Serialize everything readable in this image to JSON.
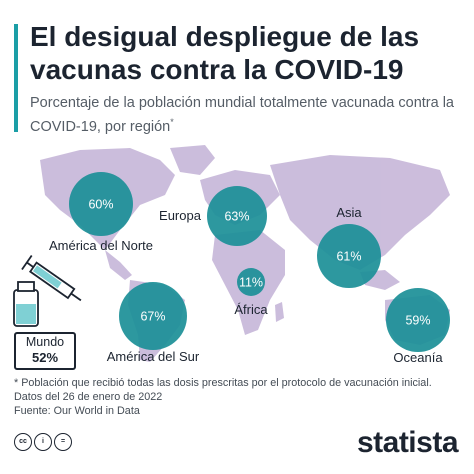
{
  "header": {
    "title": "El desigual despliegue de las vacunas contra la COVID-19",
    "subtitle": "Porcentaje de la población mundial totalmente vacunada contra la COVID-19, por región",
    "subtitle_mark": "*"
  },
  "chart_data": {
    "type": "map-bubble",
    "title": "El desigual despliegue de las vacunas contra la COVID-19",
    "subtitle": "Porcentaje de la población mundial totalmente vacunada contra la COVID-19, por región*",
    "unit": "%",
    "regions": [
      {
        "name": "América del Norte",
        "value": 60,
        "label": "60%"
      },
      {
        "name": "Europa",
        "value": 63,
        "label": "63%"
      },
      {
        "name": "Asia",
        "value": 61,
        "label": "61%"
      },
      {
        "name": "África",
        "value": 11,
        "label": "11%"
      },
      {
        "name": "América del Sur",
        "value": 67,
        "label": "67%"
      },
      {
        "name": "Oceanía",
        "value": 59,
        "label": "59%"
      }
    ],
    "world": {
      "name": "Mundo",
      "value": 52,
      "label": "52%"
    }
  },
  "notes": {
    "footnote": "* Población que recibió todas las dosis prescritas por el protocolo de vacunación inicial.",
    "date": "Datos del 26 de enero de 2022",
    "source": "Fuente: Our World in Data"
  },
  "footer": {
    "brand": "statista",
    "license_icons": [
      "cc-icon",
      "by-icon",
      "nd-icon"
    ]
  },
  "colors": {
    "accent": "#1b9ea6",
    "bubble": "#1b8f97",
    "land": "#c3b2d6",
    "text": "#1c2430"
  }
}
